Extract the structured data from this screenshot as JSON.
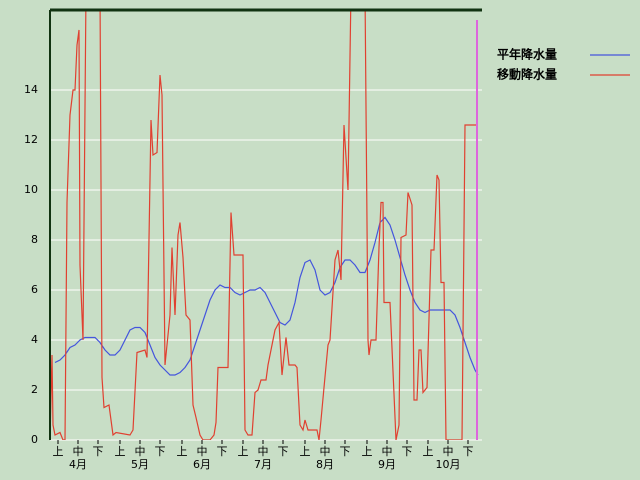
{
  "chart_data": {
    "type": "line",
    "xlim": [
      0,
      216
    ],
    "ylim": [
      0,
      17.2
    ],
    "yticks": [
      0,
      2,
      4,
      6,
      8,
      10,
      12,
      14
    ],
    "grid": true,
    "xticks": [
      {
        "value": 4,
        "label": "上"
      },
      {
        "value": 14,
        "label": "中"
      },
      {
        "value": 24,
        "label": "下"
      },
      {
        "value": 35,
        "label": "上"
      },
      {
        "value": 45,
        "label": "中"
      },
      {
        "value": 55,
        "label": "下"
      },
      {
        "value": 66,
        "label": "上"
      },
      {
        "value": 76,
        "label": "中"
      },
      {
        "value": 86,
        "label": "下"
      },
      {
        "value": 96.5,
        "label": "上"
      },
      {
        "value": 106.5,
        "label": "中"
      },
      {
        "value": 116.5,
        "label": "下"
      },
      {
        "value": 127.5,
        "label": "上"
      },
      {
        "value": 137.5,
        "label": "中"
      },
      {
        "value": 147.5,
        "label": "下"
      },
      {
        "value": 158.5,
        "label": "上"
      },
      {
        "value": 168.5,
        "label": "中"
      },
      {
        "value": 178.5,
        "label": "下"
      },
      {
        "value": 189,
        "label": "上"
      },
      {
        "value": 199,
        "label": "中"
      },
      {
        "value": 209,
        "label": "下"
      }
    ],
    "month_ticks": [
      {
        "value": 14,
        "label": "4月"
      },
      {
        "value": 45,
        "label": "5月"
      },
      {
        "value": 76,
        "label": "6月"
      },
      {
        "value": 106.5,
        "label": "7月"
      },
      {
        "value": 137.5,
        "label": "8月"
      },
      {
        "value": 168.5,
        "label": "9月"
      },
      {
        "value": 199,
        "label": "10月"
      }
    ],
    "series": [
      {
        "name": "平年降水量",
        "color": "#4455dd",
        "x": [
          2.5,
          5,
          7.5,
          10,
          12.5,
          15,
          17.5,
          22.5,
          25,
          27.5,
          30,
          32.5,
          35,
          37.5,
          40,
          42.5,
          45,
          47.5,
          50,
          52.5,
          55,
          57.5,
          60,
          62.5,
          65,
          67.5,
          70,
          72.5,
          75,
          77.5,
          80,
          82.5,
          85,
          87.5,
          90,
          92.5,
          95,
          97.5,
          100,
          102.5,
          105,
          107.5,
          110,
          112.5,
          115,
          117.5,
          120,
          122.5,
          125,
          127.5,
          130,
          132.5,
          135,
          137.5,
          140,
          142.5,
          145,
          147.5,
          150,
          152.5,
          155,
          157.5,
          160,
          162.5,
          165,
          167.5,
          170,
          172.5,
          175,
          177.5,
          180,
          182.5,
          185,
          187.5,
          190,
          195,
          200,
          202.5,
          205,
          207.5,
          210,
          212.5,
          214
        ],
        "values": [
          3.1,
          3.2,
          3.4,
          3.7,
          3.8,
          4.0,
          4.1,
          4.1,
          3.9,
          3.6,
          3.4,
          3.4,
          3.6,
          4.0,
          4.4,
          4.5,
          4.5,
          4.3,
          3.8,
          3.3,
          3.0,
          2.8,
          2.6,
          2.6,
          2.7,
          2.9,
          3.2,
          3.8,
          4.4,
          5.0,
          5.6,
          6.0,
          6.2,
          6.1,
          6.1,
          5.9,
          5.8,
          5.9,
          6.0,
          6.0,
          6.1,
          5.9,
          5.5,
          5.1,
          4.7,
          4.6,
          4.8,
          5.5,
          6.5,
          7.1,
          7.2,
          6.8,
          6.0,
          5.8,
          5.9,
          6.3,
          6.9,
          7.2,
          7.2,
          7.0,
          6.7,
          6.7,
          7.2,
          7.9,
          8.7,
          8.9,
          8.6,
          8.0,
          7.3,
          6.6,
          6.0,
          5.5,
          5.2,
          5.1,
          5.2,
          5.2,
          5.2,
          5.0,
          4.5,
          3.9,
          3.3,
          2.8,
          2.6
        ]
      },
      {
        "name": "移動降水量",
        "color": "#e04030",
        "x": [
          0,
          1,
          1.5,
          2.5,
          5,
          6.5,
          7.5,
          8.5,
          10,
          11.5,
          12.5,
          13.5,
          14.5,
          15,
          16.5,
          18,
          25,
          26,
          27,
          29.5,
          31.5,
          33,
          40,
          41.5,
          43.5,
          47.5,
          48.5,
          50.5,
          51.5,
          53.5,
          55,
          56,
          57.5,
          60,
          61,
          62.5,
          64,
          65,
          66.5,
          68,
          70,
          71.5,
          73,
          75,
          76.5,
          80,
          82,
          83,
          84,
          89,
          90.5,
          92,
          96.5,
          97.5,
          99,
          101,
          102.5,
          104,
          105.5,
          108,
          109,
          110.5,
          112.5,
          114.5,
          116,
          118,
          119.5,
          122.5,
          123.5,
          125,
          126.5,
          127.5,
          129,
          133.5,
          134.5,
          135.5,
          137,
          139,
          140,
          142.5,
          144,
          145.5,
          147,
          149,
          150.5,
          157.5,
          159,
          159.5,
          160.5,
          163,
          164.5,
          165.5,
          166.5,
          167,
          170,
          173,
          174.5,
          175.5,
          178,
          179,
          181,
          182,
          183.5,
          184.5,
          185.5,
          186.5,
          188.5,
          190.5,
          192,
          193.5,
          194.5,
          195.5,
          197,
          198,
          206,
          207.5,
          213
        ],
        "values": [
          0,
          3.4,
          0.6,
          0.2,
          0.3,
          0,
          0,
          9.5,
          13,
          14,
          14,
          15.8,
          16.4,
          7,
          4,
          18,
          18,
          2.5,
          1.3,
          1.4,
          0.2,
          0.3,
          0.2,
          0.4,
          3.5,
          3.6,
          3.3,
          12.8,
          11.4,
          11.5,
          14.6,
          13.8,
          3.0,
          5,
          7.7,
          5,
          8.2,
          8.7,
          7.3,
          5,
          4.8,
          1.4,
          0.9,
          0.2,
          0,
          0,
          0.2,
          0.7,
          2.9,
          2.9,
          9.1,
          7.4,
          7.4,
          0.4,
          0.2,
          0.2,
          1.9,
          2,
          2.4,
          2.4,
          3,
          3.6,
          4.4,
          4.7,
          2.6,
          4.1,
          3,
          3,
          2.9,
          0.6,
          0.4,
          0.8,
          0.4,
          0.4,
          0,
          0.8,
          2.1,
          3.8,
          4,
          7.2,
          7.6,
          6.4,
          12.6,
          10,
          18,
          18,
          4,
          3.4,
          4,
          4,
          7.7,
          9.5,
          9.5,
          5.5,
          5.5,
          0,
          0.6,
          8.1,
          8.2,
          9.9,
          9.4,
          1.6,
          1.6,
          3.6,
          3.6,
          1.9,
          2.1,
          7.6,
          7.6,
          10.6,
          10.4,
          6.3,
          6.3,
          0,
          0,
          12.6,
          12.6
        ]
      }
    ]
  }
}
